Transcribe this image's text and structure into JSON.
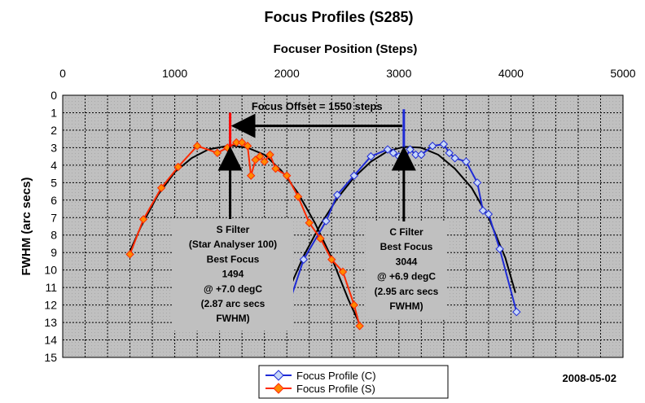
{
  "chart_data": {
    "type": "scatter",
    "title": "Focus Profiles (S285)",
    "xlabel": "Focuser Position (Steps)",
    "ylabel": "FWHM (arc secs)",
    "xlim": [
      0,
      5000
    ],
    "ylim": [
      0,
      15
    ],
    "y_reversed": true,
    "x_axis_position": "top",
    "x_ticks": [
      "0",
      "1000",
      "2000",
      "3000",
      "4000",
      "5000"
    ],
    "y_ticks": [
      "0",
      "1",
      "2",
      "3",
      "4",
      "5",
      "6",
      "7",
      "8",
      "9",
      "10",
      "11",
      "12",
      "13",
      "14",
      "15"
    ],
    "grid": true,
    "legend": "bottom-center",
    "series": [
      {
        "name": "Focus Profile (C)",
        "color": "#1f2bd6",
        "marker": "diamond",
        "marker_fill": "#c8d8f8",
        "x": [
          2000,
          2150,
          2350,
          2450,
          2600,
          2750,
          2900,
          2950,
          3000,
          3050,
          3100,
          3150,
          3200,
          3300,
          3400,
          3450,
          3500,
          3600,
          3700,
          3750,
          3800,
          3900,
          4050
        ],
        "y": [
          12.3,
          9.4,
          7.2,
          5.7,
          4.6,
          3.5,
          3.1,
          3.3,
          3.5,
          3.7,
          3.1,
          3.4,
          3.4,
          2.9,
          2.8,
          3.3,
          3.6,
          3.8,
          5.0,
          6.6,
          6.8,
          8.8,
          12.4
        ]
      },
      {
        "name": "Focus Profile (S)",
        "color": "#ff2a00",
        "marker": "diamond",
        "marker_fill": "#ff8a00",
        "x": [
          600,
          720,
          880,
          1030,
          1200,
          1380,
          1470,
          1550,
          1600,
          1650,
          1680,
          1720,
          1760,
          1800,
          1850,
          1900,
          2000,
          2100,
          2200,
          2300,
          2400,
          2500,
          2600,
          2650
        ],
        "y": [
          9.1,
          7.1,
          5.3,
          4.1,
          2.9,
          3.3,
          3.0,
          2.7,
          2.7,
          2.9,
          4.6,
          3.7,
          3.5,
          3.8,
          3.4,
          4.2,
          4.6,
          5.8,
          7.3,
          8.2,
          9.4,
          10.1,
          12.0,
          13.2
        ]
      },
      {
        "name": "",
        "type": "trend",
        "color": "#000000",
        "x": [
          580,
          700,
          850,
          1000,
          1150,
          1300,
          1494,
          1650,
          1800,
          1950,
          2100,
          2250,
          2400,
          2550,
          2650
        ],
        "y": [
          9.2,
          7.5,
          5.7,
          4.4,
          3.6,
          3.1,
          2.87,
          3.0,
          3.4,
          4.3,
          5.6,
          7.3,
          9.3,
          11.7,
          13.1
        ]
      },
      {
        "name": "",
        "type": "trend",
        "color": "#000000",
        "x": [
          2000,
          2150,
          2300,
          2450,
          2600,
          2750,
          2900,
          3044,
          3200,
          3350,
          3500,
          3650,
          3800,
          3950,
          4040
        ],
        "y": [
          11.4,
          9.2,
          7.4,
          5.9,
          4.7,
          3.8,
          3.2,
          2.95,
          3.0,
          3.4,
          4.2,
          5.3,
          7.0,
          9.3,
          11.3
        ]
      }
    ],
    "annotations": {
      "offset_label": "Focus Offset = 1550 steps",
      "s_markers": {
        "best_focus_x": 1494,
        "fwhm": 2.87
      },
      "c_markers": {
        "best_focus_x": 3044,
        "fwhm": 2.95
      },
      "s_box": [
        "S Filter",
        "(Star Analyser 100)",
        "Best Focus",
        "1494",
        "@ +7.0 degC",
        "(2.87 arc secs",
        "FWHM)"
      ],
      "c_box": [
        "C Filter",
        "Best Focus",
        "3044",
        "@ +6.9 degC",
        "(2.95 arc secs",
        "FWHM)"
      ],
      "date": "2008-05-02"
    }
  }
}
